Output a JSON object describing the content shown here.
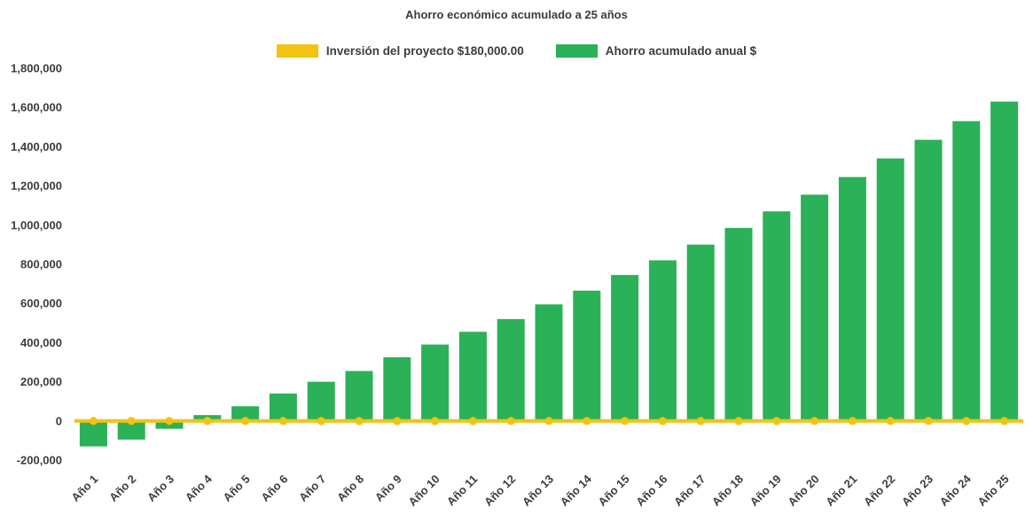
{
  "chart_data": {
    "type": "bar",
    "title": "Ahorro económico acumulado a 25 años",
    "xlabel": "",
    "ylabel": "",
    "ylim": [
      -200000,
      1800000
    ],
    "ytick_step": 200000,
    "grid": false,
    "legend_position": "top",
    "categories": [
      "Año 1",
      "Año 2",
      "Año 3",
      "Año 4",
      "Año 5",
      "Año 6",
      "Año 7",
      "Año 8",
      "Año 9",
      "Año 10",
      "Año 11",
      "Año 12",
      "Año 13",
      "Año 14",
      "Año 15",
      "Año 16",
      "Año 17",
      "Año 18",
      "Año 19",
      "Año 20",
      "Año 21",
      "Año 22",
      "Año 23",
      "Año 24",
      "Año 25"
    ],
    "series": [
      {
        "name": "Inversión del proyecto $180,000.00",
        "type": "line",
        "color": "#F2C311",
        "values": [
          0,
          0,
          0,
          0,
          0,
          0,
          0,
          0,
          0,
          0,
          0,
          0,
          0,
          0,
          0,
          0,
          0,
          0,
          0,
          0,
          0,
          0,
          0,
          0,
          0
        ]
      },
      {
        "name": "Ahorro acumulado anual $",
        "type": "bar",
        "color": "#2BB158",
        "values": [
          -130000,
          -95000,
          -40000,
          30000,
          75000,
          140000,
          200000,
          255000,
          325000,
          390000,
          455000,
          520000,
          595000,
          665000,
          745000,
          820000,
          900000,
          985000,
          1070000,
          1155000,
          1245000,
          1340000,
          1435000,
          1530000,
          1630000
        ]
      }
    ]
  },
  "colors": {
    "background": "#ffffff",
    "text": "#3c3c3c",
    "investment_line": "#F2C311",
    "savings_bar": "#2BB158"
  }
}
